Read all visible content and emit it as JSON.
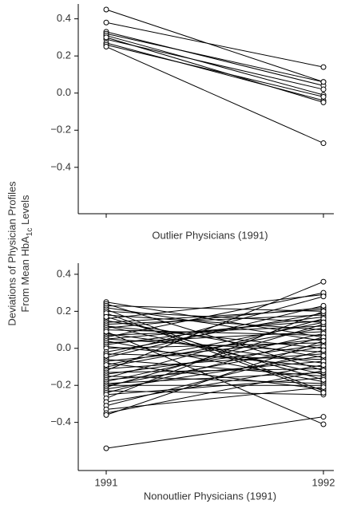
{
  "y_label": {
    "line1": "Deviations of Physician Profiles",
    "line2_start": "From Mean HbA",
    "line2_sub": "1c",
    "line2_end": " Levels"
  },
  "chart_data": [
    {
      "type": "slope",
      "x_label": "Outlier Physicians (1991)",
      "categories": [
        null,
        null
      ],
      "color": "#000000",
      "ylim": [
        -0.65,
        0.48
      ],
      "yticks": [
        0.4,
        0.2,
        {
          "value": 0,
          "label": "0.0"
        },
        {
          "value": -0.2,
          "label": "−0.2"
        },
        {
          "value": -0.4,
          "label": "−0.4"
        }
      ],
      "series": [
        {
          "values": [
            0.45,
            0.06
          ]
        },
        {
          "values": [
            0.38,
            0.14
          ]
        },
        {
          "values": [
            0.33,
            0.04
          ]
        },
        {
          "values": [
            0.32,
            0.06
          ]
        },
        {
          "values": [
            0.31,
            -0.01
          ]
        },
        {
          "values": [
            0.29,
            0.02
          ]
        },
        {
          "values": [
            0.27,
            -0.04
          ]
        },
        {
          "values": [
            0.26,
            -0.02
          ]
        },
        {
          "values": [
            0.25,
            -0.27
          ]
        },
        {
          "values": [
            0.3,
            -0.05
          ]
        }
      ]
    },
    {
      "type": "slope",
      "x_label": "Nonoutlier Physicians (1991)",
      "categories": [
        "1991",
        "1992"
      ],
      "color": "#000000",
      "ylim": [
        -0.66,
        0.46
      ],
      "yticks": [
        0.4,
        0.2,
        {
          "value": 0,
          "label": "0.0"
        },
        {
          "value": -0.2,
          "label": "−0.2"
        },
        {
          "value": -0.4,
          "label": "−0.4"
        }
      ],
      "series": [
        {
          "values": [
            0.25,
            0.06
          ]
        },
        {
          "values": [
            0.24,
            -0.12
          ]
        },
        {
          "values": [
            0.23,
            0.2
          ]
        },
        {
          "values": [
            0.22,
            0.04
          ]
        },
        {
          "values": [
            0.21,
            -0.23
          ]
        },
        {
          "values": [
            0.2,
            0.14
          ]
        },
        {
          "values": [
            0.18,
            0.1
          ]
        },
        {
          "values": [
            0.16,
            0.29
          ]
        },
        {
          "values": [
            0.15,
            -0.05
          ]
        },
        {
          "values": [
            0.14,
            0.21
          ]
        },
        {
          "values": [
            0.13,
            0.18
          ]
        },
        {
          "values": [
            0.12,
            0.0
          ]
        },
        {
          "values": [
            0.12,
            -0.14
          ]
        },
        {
          "values": [
            0.11,
            0.22
          ]
        },
        {
          "values": [
            0.1,
            0.07
          ]
        },
        {
          "values": [
            0.08,
            -0.08
          ]
        },
        {
          "values": [
            0.07,
            0.12
          ]
        },
        {
          "values": [
            0.06,
            0.3
          ]
        },
        {
          "values": [
            0.05,
            -0.02
          ]
        },
        {
          "values": [
            0.05,
            0.15
          ]
        },
        {
          "values": [
            0.04,
            -0.18
          ]
        },
        {
          "values": [
            0.03,
            0.09
          ]
        },
        {
          "values": [
            0.02,
            0.17
          ]
        },
        {
          "values": [
            0.01,
            -0.1
          ]
        },
        {
          "values": [
            0.0,
            0.03
          ]
        },
        {
          "values": [
            -0.02,
            0.19
          ]
        },
        {
          "values": [
            -0.03,
            -0.06
          ]
        },
        {
          "values": [
            -0.05,
            0.23
          ]
        },
        {
          "values": [
            -0.06,
            -0.15
          ]
        },
        {
          "values": [
            -0.07,
            0.05
          ]
        },
        {
          "values": [
            -0.08,
            -0.22
          ]
        },
        {
          "values": [
            -0.1,
            0.11
          ]
        },
        {
          "values": [
            -0.11,
            -0.03
          ]
        },
        {
          "values": [
            -0.12,
            0.36
          ]
        },
        {
          "values": [
            -0.13,
            -0.11
          ]
        },
        {
          "values": [
            -0.14,
            0.02
          ]
        },
        {
          "values": [
            -0.15,
            -0.19
          ]
        },
        {
          "values": [
            -0.16,
            0.16
          ]
        },
        {
          "values": [
            -0.17,
            -0.07
          ]
        },
        {
          "values": [
            -0.18,
            0.08
          ]
        },
        {
          "values": [
            -0.19,
            -0.13
          ]
        },
        {
          "values": [
            -0.2,
            0.01
          ]
        },
        {
          "values": [
            -0.2,
            -0.2
          ]
        },
        {
          "values": [
            -0.21,
            0.13
          ]
        },
        {
          "values": [
            -0.22,
            -0.04
          ]
        },
        {
          "values": [
            -0.23,
            -0.25
          ]
        },
        {
          "values": [
            -0.24,
            0.06
          ]
        },
        {
          "values": [
            -0.25,
            -0.16
          ]
        },
        {
          "values": [
            -0.27,
            0.2
          ]
        },
        {
          "values": [
            -0.29,
            -0.09
          ]
        },
        {
          "values": [
            -0.31,
            -0.01
          ]
        },
        {
          "values": [
            -0.33,
            -0.21
          ]
        },
        {
          "values": [
            -0.35,
            -0.12
          ]
        },
        {
          "values": [
            -0.36,
            0.04
          ]
        },
        {
          "values": [
            -0.54,
            -0.37
          ]
        },
        {
          "values": [
            0.09,
            -0.41
          ]
        },
        {
          "values": [
            0.19,
            -0.24
          ]
        },
        {
          "values": [
            -0.04,
            0.28
          ]
        },
        {
          "values": [
            0.17,
            -0.17
          ]
        },
        {
          "values": [
            -0.09,
            0.14
          ]
        }
      ]
    }
  ]
}
